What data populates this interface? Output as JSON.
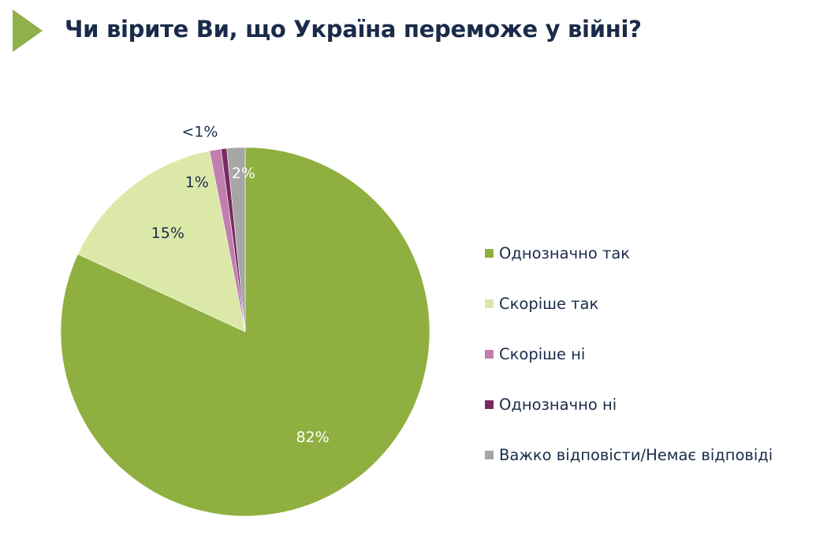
{
  "title": "Чи вірите Ви, що Україна переможе у війні?",
  "chart_data": {
    "type": "pie",
    "title": "Чи вірите Ви, що Україна переможе у війні?",
    "slices": [
      {
        "name": "Однозначно так",
        "value": 82,
        "label": "82%",
        "color": "#8fb040"
      },
      {
        "name": "Скоріше так",
        "value": 15,
        "label": "15%",
        "color": "#dce8a8"
      },
      {
        "name": "Скоріше ні",
        "value": 1,
        "label": "1%",
        "color": "#c07fad"
      },
      {
        "name": "Однозначно ні",
        "value": 0.5,
        "label": "<1%",
        "color": "#7a2a60"
      },
      {
        "name": "Важко відповісти/Немає відповіді",
        "value": 1.6,
        "label": "2%",
        "color": "#a6a6a6"
      }
    ],
    "legend_position": "right"
  },
  "colors": {
    "accent": "#8fb04a",
    "title_text": "#1a2b4a"
  }
}
